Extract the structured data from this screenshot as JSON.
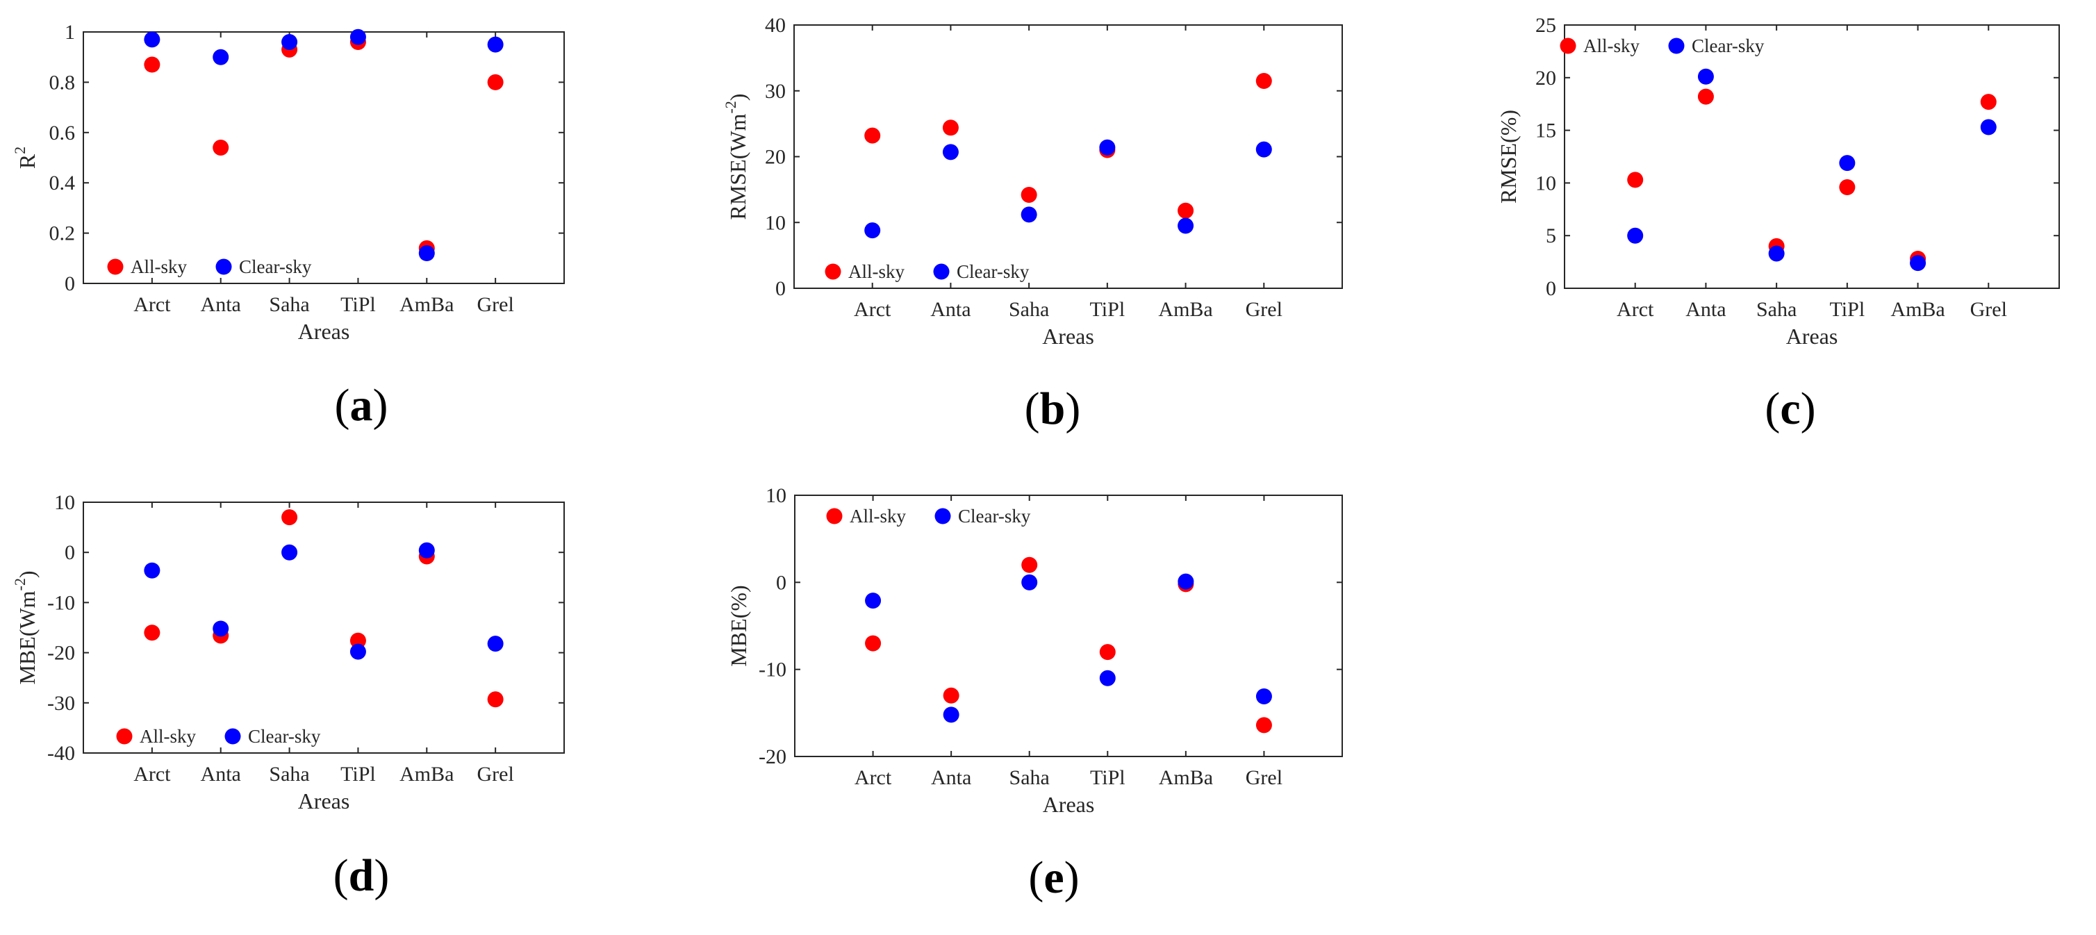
{
  "series_colors": {
    "All-sky": "#ff0000",
    "Clear-sky": "#0000ff"
  },
  "chart_data": [
    {
      "panel": "(a)",
      "panel_letter": "a",
      "type": "scatter",
      "categories": [
        "Arct",
        "Anta",
        "Saha",
        "TiPl",
        "AmBa",
        "Grel"
      ],
      "xlabel": "Areas",
      "ylabel_text": "R",
      "ylabel_sup": "2",
      "ylabel_suffix": "",
      "ylim": [
        0,
        1
      ],
      "yticks": [
        "0",
        "0.2",
        "0.4",
        "0.6",
        "0.8",
        "1"
      ],
      "yticks_values": [
        0,
        0.2,
        0.4,
        0.6,
        0.8,
        1
      ],
      "legend_position": "bottom-left",
      "legend": [
        "All-sky",
        "Clear-sky"
      ],
      "series": [
        {
          "name": "All-sky",
          "values": [
            0.87,
            0.54,
            0.93,
            0.96,
            0.14,
            0.8
          ]
        },
        {
          "name": "Clear-sky",
          "values": [
            0.97,
            0.9,
            0.96,
            0.98,
            0.12,
            0.95
          ]
        }
      ]
    },
    {
      "panel": "(b)",
      "panel_letter": "b",
      "type": "scatter",
      "categories": [
        "Arct",
        "Anta",
        "Saha",
        "TiPl",
        "AmBa",
        "Grel"
      ],
      "xlabel": "Areas",
      "ylabel_text": "RMSE(Wm",
      "ylabel_sup": "-2",
      "ylabel_suffix": ")",
      "ylim": [
        0,
        40
      ],
      "yticks": [
        "0",
        "10",
        "20",
        "30",
        "40"
      ],
      "yticks_values": [
        0,
        10,
        20,
        30,
        40
      ],
      "legend_position": "bottom-left",
      "legend": [
        "All-sky",
        "Clear-sky"
      ],
      "series": [
        {
          "name": "All-sky",
          "values": [
            23.2,
            24.4,
            14.2,
            21.0,
            11.8,
            31.5
          ]
        },
        {
          "name": "Clear-sky",
          "values": [
            8.8,
            20.7,
            11.2,
            21.4,
            9.5,
            21.1
          ]
        }
      ]
    },
    {
      "panel": "(c)",
      "panel_letter": "c",
      "type": "scatter",
      "categories": [
        "Arct",
        "Anta",
        "Saha",
        "TiPl",
        "AmBa",
        "Grel"
      ],
      "xlabel": "Areas",
      "ylabel_text": "RMSE(%)",
      "ylabel_sup": "",
      "ylabel_suffix": "",
      "ylim": [
        0,
        25
      ],
      "yticks": [
        "0",
        "5",
        "10",
        "15",
        "20",
        "25"
      ],
      "yticks_values": [
        0,
        5,
        10,
        15,
        20,
        25
      ],
      "legend_position": "top-left",
      "legend": [
        "All-sky",
        "Clear-sky"
      ],
      "series": [
        {
          "name": "All-sky",
          "values": [
            10.3,
            18.2,
            4.0,
            9.6,
            2.8,
            17.7
          ]
        },
        {
          "name": "Clear-sky",
          "values": [
            5.0,
            20.1,
            3.3,
            11.9,
            2.4,
            15.3
          ]
        }
      ]
    },
    {
      "panel": "(d)",
      "panel_letter": "d",
      "type": "scatter",
      "categories": [
        "Arct",
        "Anta",
        "Saha",
        "TiPl",
        "AmBa",
        "Grel"
      ],
      "xlabel": "Areas",
      "ylabel_text": "MBE(Wm",
      "ylabel_sup": "-2",
      "ylabel_suffix": ")",
      "ylim": [
        -40,
        10
      ],
      "yticks": [
        "-40",
        "-30",
        "-20",
        "-10",
        "0",
        "10"
      ],
      "yticks_values": [
        -40,
        -30,
        -20,
        -10,
        0,
        10
      ],
      "legend_position": "bottom-left",
      "legend": [
        "All-sky",
        "Clear-sky"
      ],
      "series": [
        {
          "name": "All-sky",
          "values": [
            -16.0,
            -16.6,
            7.0,
            -17.6,
            -0.8,
            -29.3
          ]
        },
        {
          "name": "Clear-sky",
          "values": [
            -3.6,
            -15.2,
            0.0,
            -19.8,
            0.4,
            -18.2
          ]
        }
      ]
    },
    {
      "panel": "(e)",
      "panel_letter": "e",
      "type": "scatter",
      "categories": [
        "Arct",
        "Anta",
        "Saha",
        "TiPl",
        "AmBa",
        "Grel"
      ],
      "xlabel": "Areas",
      "ylabel_text": "MBE(%)",
      "ylabel_sup": "",
      "ylabel_suffix": "",
      "ylim": [
        -20,
        10
      ],
      "yticks": [
        "-20",
        "-10",
        "0",
        "10"
      ],
      "yticks_values": [
        -20,
        -10,
        0,
        10
      ],
      "legend_position": "top-left",
      "legend": [
        "All-sky",
        "Clear-sky"
      ],
      "series": [
        {
          "name": "All-sky",
          "values": [
            -7.0,
            -13.0,
            2.0,
            -8.0,
            -0.2,
            -16.4
          ]
        },
        {
          "name": "Clear-sky",
          "values": [
            -2.1,
            -15.2,
            0.0,
            -11.0,
            0.1,
            -13.1
          ]
        }
      ]
    }
  ]
}
